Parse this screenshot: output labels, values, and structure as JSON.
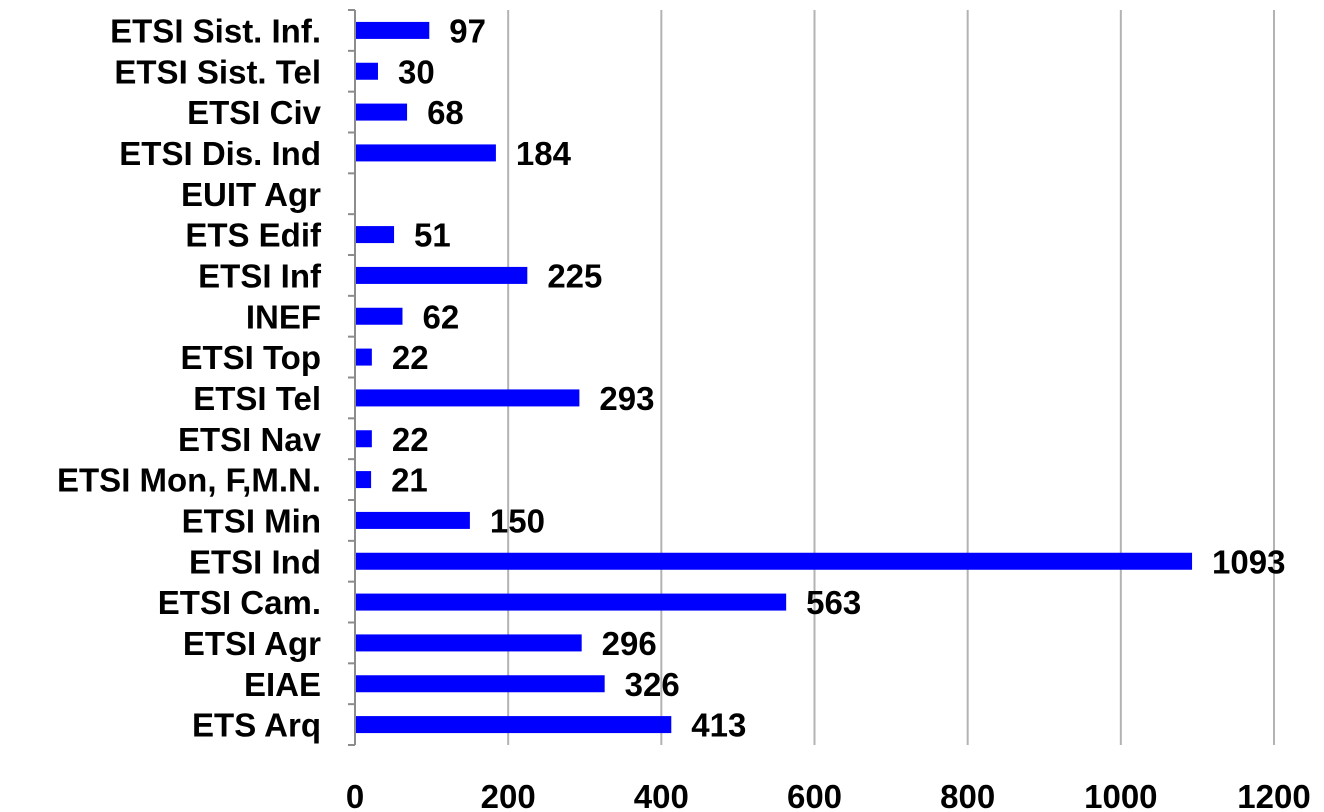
{
  "chart_data": {
    "type": "bar",
    "orientation": "horizontal",
    "title": "",
    "xlabel": "",
    "ylabel": "",
    "categories": [
      "ETSI Sist. Inf.",
      "ETSI Sist. Tel",
      "ETSI Civ",
      "ETSI Dis. Ind",
      "EUIT Agr",
      "ETS Edif",
      "ETSI Inf",
      "INEF",
      "ETSI Top",
      "ETSI Tel",
      "ETSI Nav",
      "ETSI Mon, F,M.N.",
      "ETSI Min",
      "ETSI Ind",
      "ETSI Cam.",
      "ETSI Agr",
      "EIAE",
      "ETS Arq"
    ],
    "values": [
      97,
      30,
      68,
      184,
      null,
      51,
      225,
      62,
      22,
      293,
      22,
      21,
      150,
      1093,
      563,
      296,
      326,
      413
    ],
    "data_labels": [
      "97",
      "30",
      "68",
      "184",
      "",
      "51",
      "225",
      "62",
      "22",
      "293",
      "22",
      "21",
      "150",
      "1093",
      "563",
      "296",
      "326",
      "413"
    ],
    "xlim": [
      0,
      1200
    ],
    "xticks": [
      0,
      200,
      400,
      600,
      800,
      1000,
      1200
    ],
    "xtick_labels": [
      "0",
      "200",
      "400",
      "600",
      "800",
      "1000",
      "1200"
    ],
    "grid": "vertical",
    "legend": "none",
    "colors": {
      "bar": "#0000ff",
      "grid": "#b3b3b3",
      "axis": "#8c8c8c",
      "text": "#000000"
    }
  }
}
